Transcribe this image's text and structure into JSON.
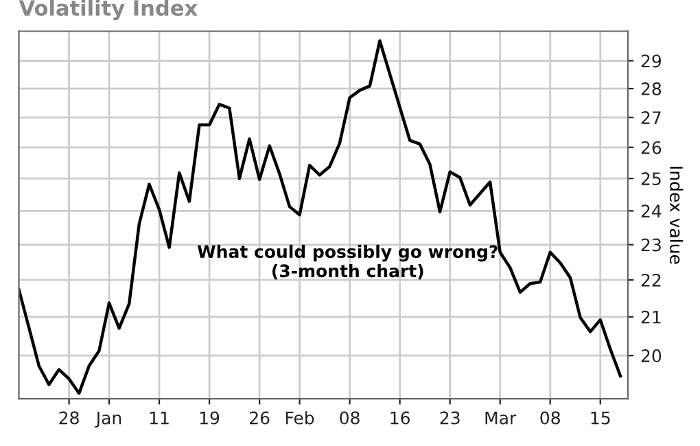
{
  "chart_data": {
    "type": "line",
    "title": "Volatility Index",
    "ylabel": "Index value",
    "categories": [
      null,
      null,
      null,
      null,
      null,
      "28",
      null,
      null,
      null,
      "Jan",
      null,
      null,
      null,
      null,
      "11",
      null,
      null,
      null,
      null,
      "19",
      null,
      null,
      null,
      null,
      "26",
      null,
      null,
      null,
      "Feb",
      null,
      null,
      null,
      null,
      "08",
      null,
      null,
      null,
      null,
      "16",
      null,
      null,
      null,
      null,
      "23",
      null,
      null,
      null,
      null,
      "Mar",
      null,
      null,
      null,
      null,
      "08",
      null,
      null,
      null,
      null,
      "15",
      null,
      null
    ],
    "series": [
      {
        "color": "#000000",
        "values": [
          21.73,
          20.72,
          19.74,
          19.28,
          19.65,
          19.42,
          19.07,
          19.74,
          20.12,
          21.37,
          20.7,
          21.35,
          23.61,
          24.82,
          24.04,
          22.92,
          25.18,
          24.29,
          26.75,
          26.75,
          27.45,
          27.32,
          25.0,
          26.28,
          24.97,
          26.05,
          25.15,
          24.13,
          23.88,
          25.42,
          25.11,
          25.38,
          26.14,
          27.68,
          27.94,
          28.09,
          29.74,
          28.52,
          27.35,
          26.23,
          26.11,
          25.45,
          23.97,
          25.21,
          25.03,
          24.18,
          24.53,
          24.89,
          22.78,
          22.34,
          21.66,
          21.9,
          21.94,
          22.78,
          22.48,
          22.06,
          20.98,
          20.61,
          20.92,
          20.16,
          19.49
        ]
      }
    ],
    "ylim": [
      18.94,
      30.1
    ],
    "yticks": [
      20,
      21,
      22,
      23,
      24,
      25,
      26,
      27,
      28,
      29
    ],
    "log": "y",
    "grid": true,
    "marker": "none",
    "line_style": "solid",
    "annotations": [
      "What could possibly go wrong?\n(3-month chart)"
    ]
  }
}
